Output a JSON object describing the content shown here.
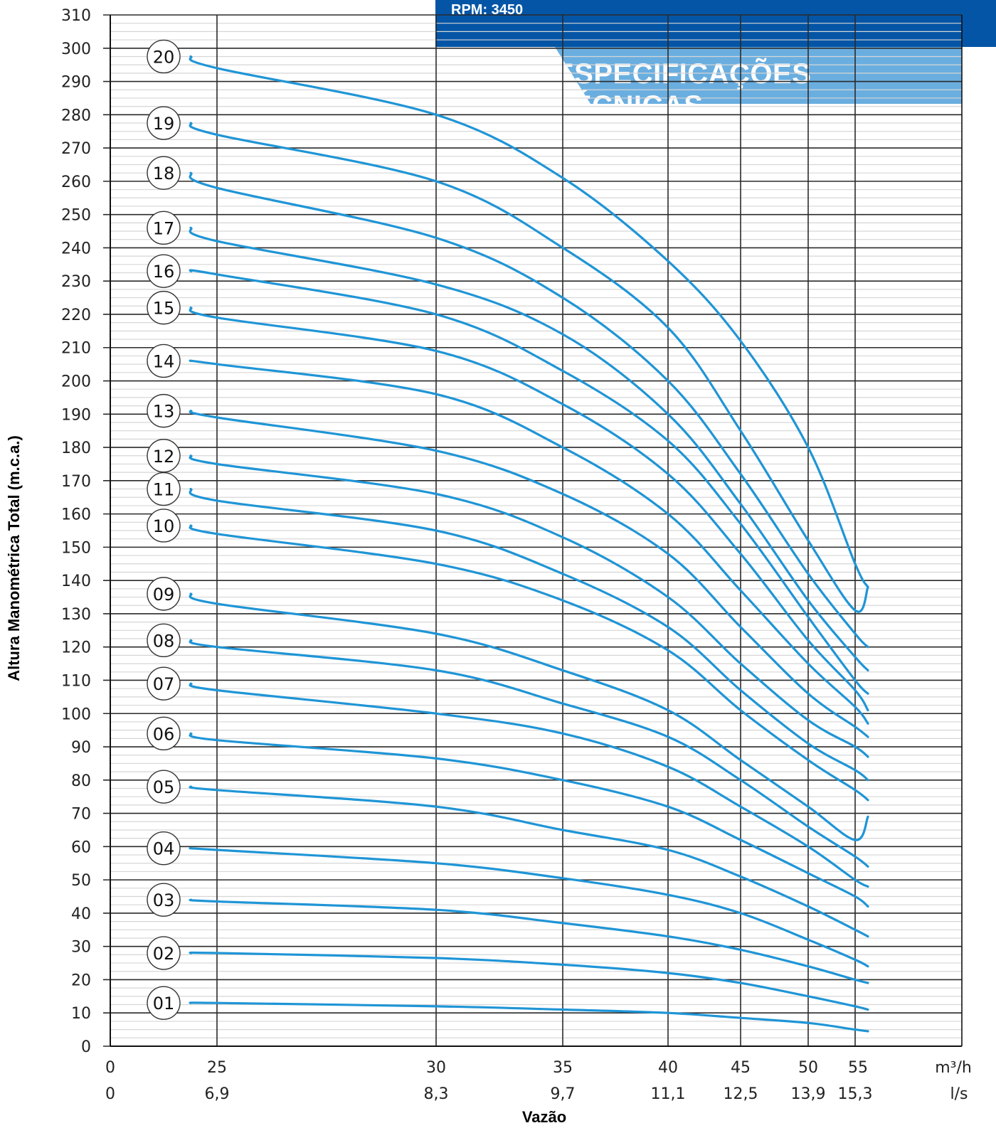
{
  "header": {
    "rpm": "RPM: 3450",
    "title": "ESPECIFICAÇÕES TÉCNICAS"
  },
  "colors": {
    "curve": "#1f95d6",
    "banner_dark": "#0455a6",
    "banner_light": "#6aaee0"
  },
  "chart_data": {
    "type": "line",
    "ylabel": "Altura Manométrica Total (m.c.a.)",
    "xlabel": "Vazão",
    "ylim": [
      0,
      310
    ],
    "y_ticks": [
      0,
      10,
      20,
      30,
      40,
      50,
      60,
      70,
      80,
      90,
      100,
      110,
      120,
      130,
      140,
      150,
      160,
      170,
      180,
      190,
      200,
      210,
      220,
      230,
      240,
      250,
      260,
      270,
      280,
      290,
      300,
      310
    ],
    "x_ticks_m3h": [
      "0",
      "25",
      "30",
      "35",
      "40",
      "45",
      "50",
      "55"
    ],
    "x_ticks_ls": [
      "0",
      "6,9",
      "8,3",
      "9,7",
      "11,1",
      "12,5",
      "13,9",
      "15,3"
    ],
    "x_unit_m3h": "m³/h",
    "x_unit_ls": "l/s",
    "x_note": "x values are flow in m³/h as read against the top tick row; the axis is non-linear (0 at far left, then 25…55)",
    "grid": true,
    "series": [
      {
        "name": "01",
        "x": [
          20,
          25,
          30,
          35,
          40,
          45,
          50,
          55,
          56.5
        ],
        "y": [
          13,
          13,
          12,
          11,
          10,
          8.5,
          7,
          5,
          4.5
        ]
      },
      {
        "name": "02",
        "x": [
          20,
          25,
          30,
          35,
          40,
          45,
          50,
          55,
          56.5
        ],
        "y": [
          28,
          28,
          26.5,
          24.5,
          22,
          19,
          15,
          12,
          11
        ]
      },
      {
        "name": "03",
        "x": [
          20,
          25,
          30,
          35,
          40,
          45,
          50,
          55,
          56.5
        ],
        "y": [
          44,
          43.5,
          41,
          37,
          33,
          29,
          24,
          20,
          19
        ]
      },
      {
        "name": "04",
        "x": [
          20,
          25,
          30,
          35,
          40,
          45,
          50,
          55,
          56.5
        ],
        "y": [
          59.5,
          59,
          55,
          50.5,
          45.5,
          40,
          32,
          26,
          24
        ]
      },
      {
        "name": "05",
        "x": [
          20,
          25,
          30,
          35,
          40,
          45,
          50,
          55,
          56.5
        ],
        "y": [
          78,
          77,
          72,
          65,
          59,
          51,
          42,
          35,
          33
        ]
      },
      {
        "name": "06",
        "x": [
          20,
          25,
          30,
          35,
          40,
          45,
          50,
          55,
          56.5
        ],
        "y": [
          94,
          92,
          86.5,
          80,
          72,
          62,
          52,
          45,
          42
        ]
      },
      {
        "name": "07",
        "x": [
          20,
          25,
          30,
          35,
          40,
          45,
          50,
          55,
          56.5
        ],
        "y": [
          109,
          107,
          100,
          94,
          84,
          72,
          60,
          50,
          48
        ]
      },
      {
        "name": "08",
        "x": [
          20,
          25,
          30,
          35,
          40,
          45,
          50,
          55,
          56.5
        ],
        "y": [
          122,
          120,
          113,
          103,
          93,
          80,
          66,
          57,
          54
        ]
      },
      {
        "name": "09",
        "x": [
          20,
          25,
          30,
          35,
          40,
          45,
          50,
          55,
          56.5
        ],
        "y": [
          136,
          133,
          124,
          113,
          101,
          86,
          72,
          62,
          69
        ]
      },
      {
        "name": "10",
        "x": [
          20,
          25,
          30,
          35,
          40,
          45,
          50,
          55,
          56.5
        ],
        "y": [
          156.5,
          154,
          145,
          134,
          119,
          101,
          86,
          77,
          74
        ]
      },
      {
        "name": "11",
        "x": [
          20,
          25,
          30,
          35,
          40,
          45,
          50,
          55,
          56.5
        ],
        "y": [
          167.5,
          164,
          155,
          142,
          126,
          107,
          91,
          83,
          80
        ]
      },
      {
        "name": "12",
        "x": [
          20,
          25,
          30,
          35,
          40,
          45,
          50,
          55,
          56.5
        ],
        "y": [
          177.5,
          175,
          166,
          153,
          135,
          115,
          98,
          90,
          87
        ]
      },
      {
        "name": "13",
        "x": [
          20,
          25,
          30,
          35,
          40,
          45,
          50,
          55,
          56.5
        ],
        "y": [
          191,
          189,
          179,
          166,
          148,
          126,
          106,
          96,
          93
        ]
      },
      {
        "name": "14",
        "x": [
          20,
          25,
          30,
          35,
          40,
          45,
          50,
          55,
          56.5
        ],
        "y": [
          206,
          205,
          196,
          180,
          160,
          137,
          115,
          102,
          97
        ]
      },
      {
        "name": "15",
        "x": [
          20,
          25,
          30,
          35,
          40,
          45,
          50,
          55,
          56.5
        ],
        "y": [
          222,
          219,
          209,
          193,
          172,
          148,
          122,
          107,
          101
        ]
      },
      {
        "name": "16",
        "x": [
          20,
          25,
          30,
          35,
          40,
          45,
          50,
          55,
          56.5
        ],
        "y": [
          233,
          232,
          220,
          203,
          182,
          157,
          129,
          110,
          106
        ]
      },
      {
        "name": "17",
        "x": [
          20,
          25,
          30,
          35,
          40,
          45,
          50,
          55,
          56.5
        ],
        "y": [
          246,
          242,
          229,
          214,
          190,
          163,
          134,
          117,
          113
        ]
      },
      {
        "name": "18",
        "x": [
          20,
          25,
          30,
          35,
          40,
          45,
          50,
          55,
          56.5
        ],
        "y": [
          262.5,
          258,
          243,
          225,
          200,
          172,
          142,
          124,
          120
        ]
      },
      {
        "name": "19",
        "x": [
          20,
          25,
          30,
          35,
          40,
          45,
          50,
          55,
          56.5
        ],
        "y": [
          277.5,
          274,
          260,
          240,
          216,
          185,
          152,
          131,
          138
        ]
      },
      {
        "name": "20",
        "x": [
          20,
          25,
          30,
          35,
          40,
          45,
          50,
          55,
          56.5
        ],
        "y": [
          297.5,
          294,
          280,
          261,
          236,
          212,
          180,
          145,
          138
        ]
      }
    ]
  }
}
